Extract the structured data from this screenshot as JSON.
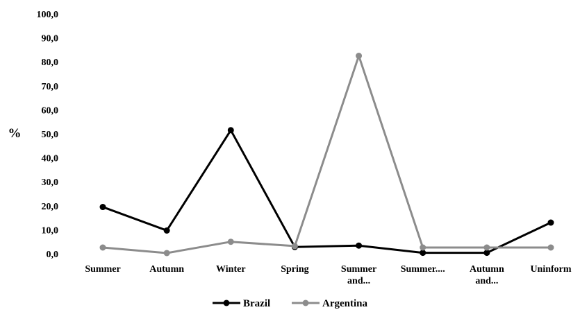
{
  "chart_data": {
    "type": "line",
    "title": "",
    "xlabel": "",
    "ylabel": "%",
    "ylim": [
      0,
      100
    ],
    "y_ticks": [
      "0,0",
      "10,0",
      "20,0",
      "30,0",
      "40,0",
      "50,0",
      "60,0",
      "70,0",
      "80,0",
      "90,0",
      "100,0"
    ],
    "categories": [
      [
        "Summer"
      ],
      [
        "Autumn"
      ],
      [
        "Winter"
      ],
      [
        "Spring"
      ],
      [
        "Summer",
        "and..."
      ],
      [
        "Summer...."
      ],
      [
        "Autumn",
        "and..."
      ],
      [
        "Uninform"
      ]
    ],
    "grid": false,
    "legend_position": "bottom",
    "series": [
      {
        "name": "Brazil",
        "color": "#000000",
        "values": [
          19.5,
          9.7,
          51.5,
          2.8,
          3.4,
          0.4,
          0.4,
          13.0
        ]
      },
      {
        "name": "Argentina",
        "color": "#8c8c8c",
        "values": [
          2.6,
          0.3,
          5.0,
          3.2,
          82.5,
          2.6,
          2.6,
          2.6
        ]
      }
    ]
  }
}
